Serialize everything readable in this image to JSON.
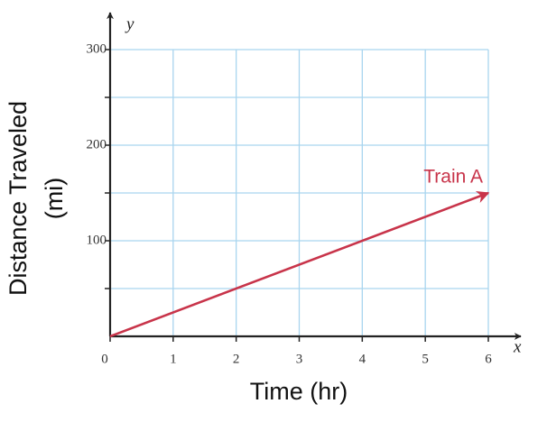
{
  "chart_data": {
    "type": "line",
    "xlabel": "Time (hr)",
    "ylabel": [
      "Distance Traveled",
      "(mi)"
    ],
    "x_axis_name": "x",
    "y_axis_name": "y",
    "x": [
      0,
      6
    ],
    "series": [
      {
        "name": "Train A",
        "color": "#c8344a",
        "values": [
          0,
          150
        ]
      }
    ],
    "xlim": [
      0,
      6
    ],
    "ylim": [
      0,
      300
    ],
    "xticks": [
      0,
      1,
      2,
      3,
      4,
      5,
      6
    ],
    "yticks": [
      100,
      200,
      300
    ],
    "yminor": [
      50,
      150,
      250
    ],
    "grid": true,
    "grid_color": "#a9d5ef"
  }
}
